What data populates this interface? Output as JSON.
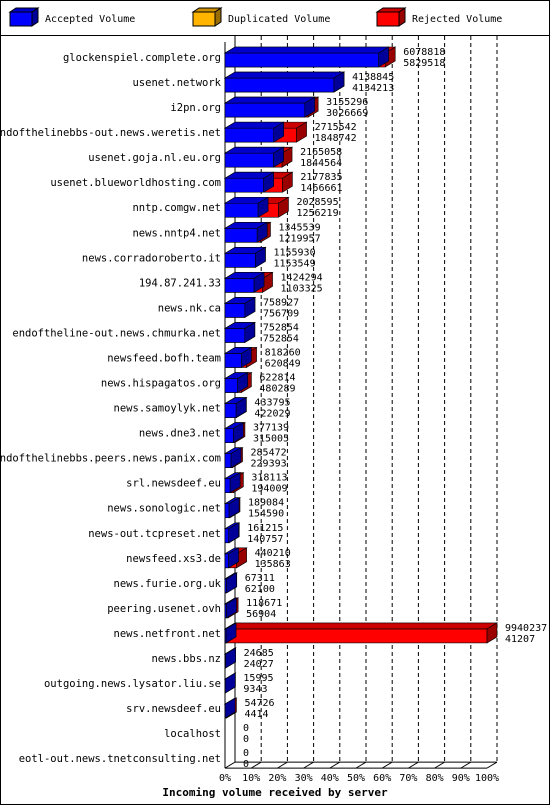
{
  "chart_data": {
    "type": "bar3d",
    "orientation": "horizontal",
    "x_label": "Incoming volume received by server",
    "categories": [
      "glockenspiel.complete.org",
      "usenet.network",
      "i2pn.org",
      "endofthelinebbs-out.news.weretis.net",
      "usenet.goja.nl.eu.org",
      "usenet.blueworldhosting.com",
      "nntp.comgw.net",
      "news.nntp4.net",
      "news.corradoroberto.it",
      "194.87.241.33",
      "news.nk.ca",
      "endoftheline-out.news.chmurka.net",
      "newsfeed.bofh.team",
      "news.hispagatos.org",
      "news.samoylyk.net",
      "news.dne3.net",
      "endofthelinebbs.peers.news.panix.com",
      "srl.newsdeef.eu",
      "news.sonologic.net",
      "news-out.tcpreset.net",
      "newsfeed.xs3.de",
      "news.furie.org.uk",
      "peering.usenet.ovh",
      "news.netfront.net",
      "news.bbs.nz",
      "outgoing.news.lysator.liu.se",
      "srv.newsdeef.eu",
      "localhost",
      "eotl-out.news.tnetconsulting.net"
    ],
    "totals": [
      6078818,
      4138845,
      3155296,
      2715542,
      2165058,
      2177835,
      2028595,
      1345539,
      1155930,
      1424294,
      758927,
      752854,
      818260,
      622814,
      433795,
      377139,
      285472,
      318113,
      189084,
      161215,
      440210,
      67311,
      118671,
      9940237,
      24685,
      15995,
      54726,
      0,
      0
    ],
    "series": [
      {
        "name": "Accepted Volume",
        "color": "#0000ff",
        "values": [
          5829518,
          4134213,
          3026669,
          1848742,
          1844564,
          1466661,
          1256219,
          1219957,
          1153549,
          1103325,
          756709,
          752854,
          620849,
          480289,
          422029,
          315005,
          229393,
          194009,
          154590,
          140757,
          135863,
          62100,
          56904,
          41207,
          24027,
          9343,
          4414,
          0,
          0
        ]
      },
      {
        "name": "Duplicated Volume",
        "color": "#ffb400"
      },
      {
        "name": "Rejected Volume",
        "color": "#ff0000"
      }
    ],
    "xlim": [
      0,
      9940237
    ],
    "xticks": [
      {
        "value": 0,
        "label": "0%"
      },
      {
        "value": 994023.7,
        "label": "10%"
      },
      {
        "value": 1988047.4,
        "label": "20%"
      },
      {
        "value": 2982071.1,
        "label": "30%"
      },
      {
        "value": 3976094.8,
        "label": "40%"
      },
      {
        "value": 4970118.5,
        "label": "50%"
      },
      {
        "value": 5964142.2,
        "label": "60%"
      },
      {
        "value": 6958165.9,
        "label": "70%"
      },
      {
        "value": 7952189.6,
        "label": "80%"
      },
      {
        "value": 8946213.3,
        "label": "90%"
      },
      {
        "value": 9940237,
        "label": "100%"
      }
    ],
    "grid": true
  }
}
